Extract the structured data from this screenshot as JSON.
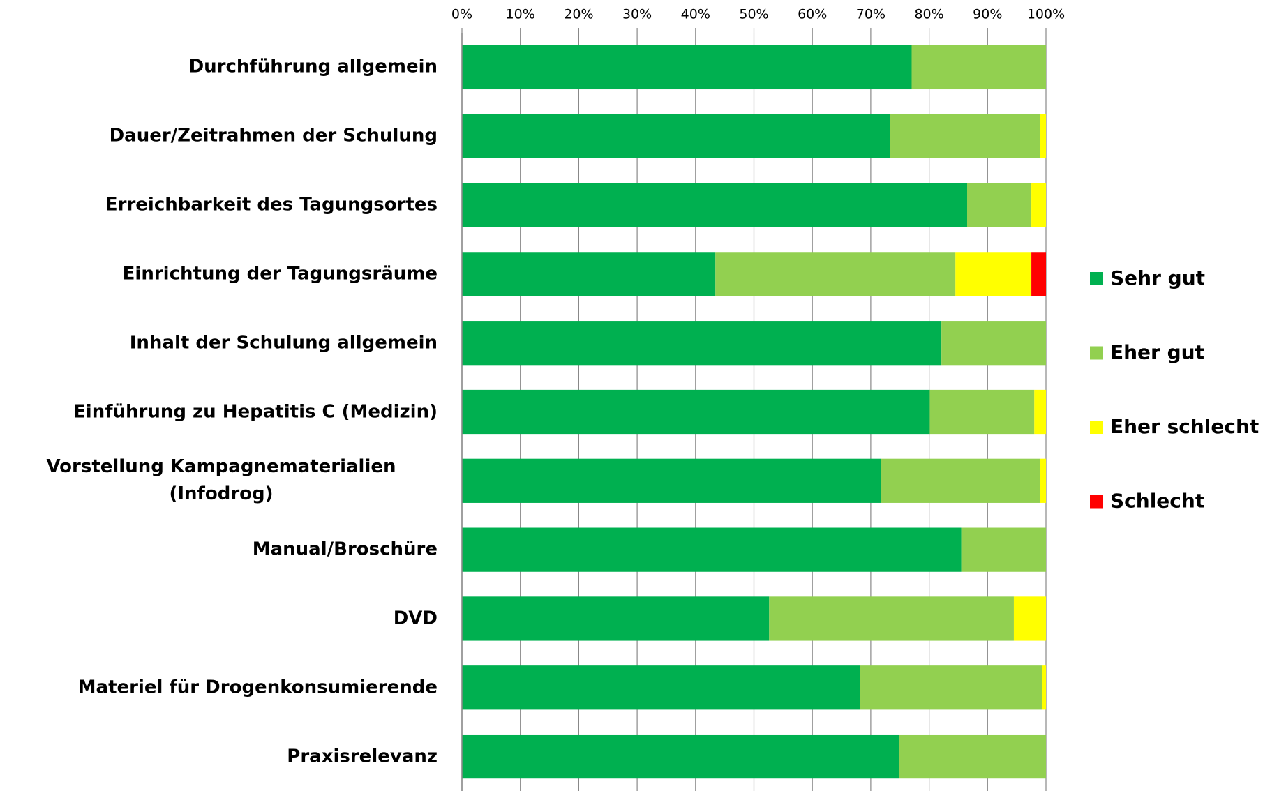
{
  "chart_data": {
    "type": "stacked_barh",
    "categories": [
      "Durchführung allgemein",
      "Dauer/Zeitrahmen der Schulung",
      "Erreichbarkeit des Tagungsortes",
      "Einrichtung der Tagungsräume",
      "Inhalt der Schulung allgemein",
      "Einführung zu Hepatitis C (Medizin)",
      "Vorstellung Kampagnematerialien (Infodrog)",
      "Manual/Broschüre",
      "DVD",
      "Materiel für Drogenkonsumierende",
      "Praxisrelevanz"
    ],
    "series": [
      {
        "name": "Sehr gut",
        "color": "#00b050",
        "values": [
          77.0,
          73.3,
          86.5,
          43.4,
          82.1,
          80.1,
          71.8,
          85.5,
          52.6,
          68.1,
          74.8
        ]
      },
      {
        "name": "Eher gut",
        "color": "#92d050",
        "values": [
          23.0,
          25.7,
          11.0,
          41.1,
          17.9,
          17.9,
          27.2,
          14.5,
          41.9,
          31.2,
          25.2
        ]
      },
      {
        "name": "Eher schlecht",
        "color": "#ffff00",
        "values": [
          0,
          1.0,
          2.5,
          13.0,
          0,
          2.0,
          1.0,
          0,
          5.5,
          0.7,
          0
        ]
      },
      {
        "name": "Schlecht",
        "color": "#ff0000",
        "values": [
          0,
          0,
          0,
          2.5,
          0,
          0,
          0,
          0,
          0,
          0,
          0
        ]
      }
    ],
    "xlim": [
      0,
      100
    ],
    "xticks": [
      {
        "value": 0,
        "label": "0%"
      },
      {
        "value": 10,
        "label": "10%"
      },
      {
        "value": 20,
        "label": "20%"
      },
      {
        "value": 30,
        "label": "30%"
      },
      {
        "value": 40,
        "label": "40%"
      },
      {
        "value": 50,
        "label": "50%"
      },
      {
        "value": 60,
        "label": "60%"
      },
      {
        "value": 70,
        "label": "70%"
      },
      {
        "value": 80,
        "label": "80%"
      },
      {
        "value": 90,
        "label": "90%"
      },
      {
        "value": 100,
        "label": "100%"
      }
    ],
    "grid": true,
    "legend": "right"
  }
}
